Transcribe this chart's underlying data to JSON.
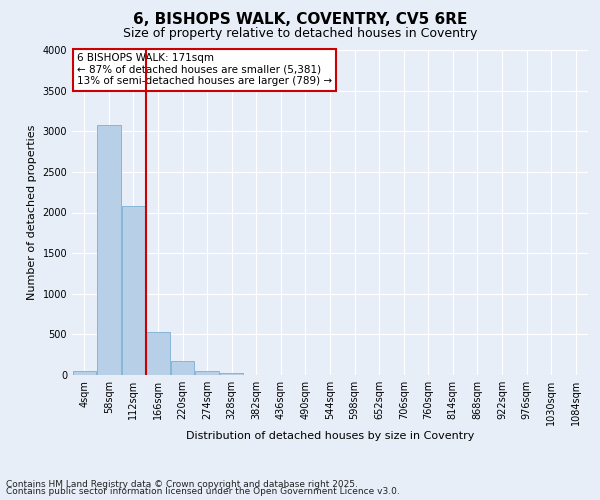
{
  "title1": "6, BISHOPS WALK, COVENTRY, CV5 6RE",
  "title2": "Size of property relative to detached houses in Coventry",
  "xlabel": "Distribution of detached houses by size in Coventry",
  "ylabel": "Number of detached properties",
  "categories": [
    "4sqm",
    "58sqm",
    "112sqm",
    "166sqm",
    "220sqm",
    "274sqm",
    "328sqm",
    "382sqm",
    "436sqm",
    "490sqm",
    "544sqm",
    "598sqm",
    "652sqm",
    "706sqm",
    "760sqm",
    "814sqm",
    "868sqm",
    "922sqm",
    "976sqm",
    "1030sqm",
    "1084sqm"
  ],
  "values": [
    55,
    3080,
    2080,
    530,
    175,
    55,
    30,
    0,
    0,
    0,
    0,
    0,
    0,
    0,
    0,
    0,
    0,
    0,
    0,
    0,
    0
  ],
  "bar_color": "#b8cfe8",
  "bar_edge_color": "#7aafd4",
  "vline_color": "#cc0000",
  "vline_pos": 2.5,
  "annotation_text": "6 BISHOPS WALK: 171sqm\n← 87% of detached houses are smaller (5,381)\n13% of semi-detached houses are larger (789) →",
  "annotation_box_facecolor": "#ffffff",
  "annotation_box_edge": "#cc0000",
  "ylim": [
    0,
    4000
  ],
  "yticks": [
    0,
    500,
    1000,
    1500,
    2000,
    2500,
    3000,
    3500,
    4000
  ],
  "background_color": "#e8eef8",
  "grid_color": "#ffffff",
  "footnote1": "Contains HM Land Registry data © Crown copyright and database right 2025.",
  "footnote2": "Contains public sector information licensed under the Open Government Licence v3.0.",
  "title1_fontsize": 11,
  "title2_fontsize": 9,
  "label_fontsize": 8,
  "tick_fontsize": 7,
  "annotation_fontsize": 7.5,
  "footnote_fontsize": 6.5
}
